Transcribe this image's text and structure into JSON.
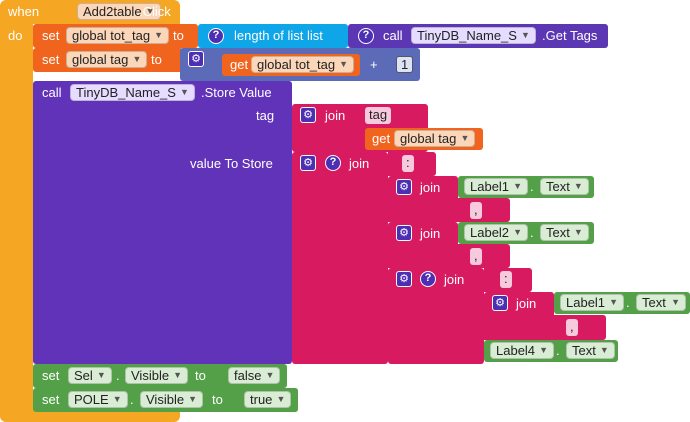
{
  "colors": {
    "control": "#f5a623",
    "variable": "#f0641e",
    "list": "#0ea5e9",
    "procedure_purple": "#5c37b4",
    "store_value_block": "#6133b8",
    "text": "#d81b60",
    "component": "#54a049",
    "math": "#5b6bb7"
  },
  "event": {
    "when": "when",
    "component": "Add2table",
    "event": ".Click",
    "do": "do"
  },
  "set_tot_tag": {
    "set": "set",
    "var": "global tot_tag",
    "to": "to",
    "length_label": "length of list  list",
    "call": "call",
    "db": "TinyDB_Name_S",
    "method": ".Get Tags"
  },
  "set_tag": {
    "set": "set",
    "var": "global tag",
    "to": "to",
    "get": "get",
    "get_var": "global tot_tag",
    "plus": "+",
    "number": "1"
  },
  "store": {
    "call": "call",
    "db": "TinyDB_Name_S",
    "method": ".Store Value",
    "tag_label": "tag",
    "join": "join",
    "tag_text": "tag",
    "get": "get",
    "get_var": "global tag",
    "value_label": "value To Store",
    "sep": ":",
    "comma": ",",
    "label1": "Label1",
    "label2": "Label2",
    "label4": "Label4",
    "prop": "Text",
    "dot": "."
  },
  "set_sel": {
    "set": "set",
    "comp": "Sel",
    "dot": ".",
    "prop": "Visible",
    "to": "to",
    "value": "false"
  },
  "set_pole": {
    "set": "set",
    "comp": "POLE",
    "dot": ".",
    "prop": "Visible",
    "to": "to",
    "value": "true"
  },
  "icons": {
    "gear": "gear-icon",
    "question": "question-icon",
    "dropdown": "dropdown-arrow-icon"
  }
}
